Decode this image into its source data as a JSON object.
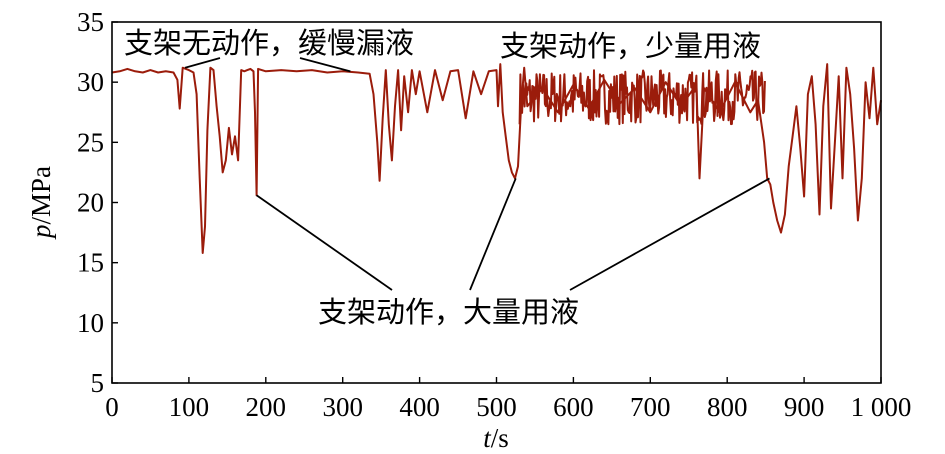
{
  "chart_data": {
    "type": "line",
    "xlabel": {
      "var": "t",
      "unit": "/s"
    },
    "ylabel": {
      "var": "p",
      "unit": "/MPa"
    },
    "xlim": [
      0,
      1000
    ],
    "ylim": [
      5,
      35
    ],
    "xticks": [
      0,
      100,
      200,
      300,
      400,
      500,
      600,
      700,
      800,
      900,
      1000
    ],
    "xtick_labels": [
      "0",
      "100",
      "200",
      "300",
      "400",
      "500",
      "600",
      "700",
      "800",
      "900",
      "1 000"
    ],
    "yticks": [
      5,
      10,
      15,
      20,
      25,
      30,
      35
    ],
    "ytick_labels": [
      "5",
      "10",
      "15",
      "20",
      "25",
      "30",
      "35"
    ],
    "grid": false,
    "series": [
      {
        "color": "#9b1c0b",
        "x": [
          0,
          10,
          20,
          30,
          40,
          50,
          60,
          70,
          80,
          85,
          88,
          92,
          100,
          106,
          110,
          114,
          118,
          121,
          124,
          128,
          132,
          136,
          140,
          144,
          148,
          152,
          156,
          160,
          164,
          168,
          172,
          176,
          180,
          184,
          186,
          188,
          190,
          200,
          220,
          240,
          260,
          280,
          300,
          320,
          335,
          340,
          345,
          348,
          352,
          356,
          360,
          364,
          368,
          372,
          376,
          380,
          385,
          390,
          395,
          400,
          410,
          420,
          430,
          440,
          450,
          460,
          470,
          480,
          490,
          500,
          502,
          505,
          508,
          512,
          516,
          520,
          524,
          528,
          532,
          536,
          540,
          560,
          580,
          600,
          620,
          640,
          660,
          680,
          700,
          720,
          740,
          760,
          764,
          770,
          790,
          810,
          830,
          840,
          848,
          852,
          856,
          860,
          865,
          870,
          875,
          880,
          885,
          890,
          895,
          900,
          905,
          910,
          915,
          920,
          925,
          930,
          935,
          940,
          945,
          950,
          955,
          960,
          965,
          970,
          975,
          980,
          985,
          990,
          995,
          1000
        ],
        "y": [
          30.8,
          30.9,
          31.1,
          30.9,
          30.8,
          31.0,
          30.8,
          30.9,
          30.8,
          30.2,
          27.8,
          31.2,
          31.0,
          30.8,
          29.0,
          22.0,
          15.8,
          18.0,
          26.0,
          31.2,
          31.0,
          28.0,
          25.5,
          22.5,
          23.5,
          26.2,
          24.0,
          25.5,
          23.5,
          31.0,
          30.9,
          31.0,
          31.1,
          30.9,
          27.5,
          20.6,
          31.1,
          30.9,
          31.0,
          30.9,
          31.0,
          30.8,
          30.9,
          30.8,
          30.7,
          29.0,
          25.0,
          21.8,
          27.0,
          31.0,
          26.5,
          23.5,
          28.0,
          31.0,
          26.0,
          30.5,
          27.5,
          31.0,
          29.0,
          30.9,
          27.5,
          31.0,
          28.5,
          30.9,
          31.0,
          27.0,
          30.9,
          29.0,
          30.9,
          31.0,
          28.0,
          31.5,
          27.5,
          25.5,
          23.5,
          22.5,
          22.0,
          23.0,
          28.0,
          31.2,
          28.0,
          29.5,
          27.5,
          29.8,
          27.8,
          30.2,
          28.2,
          29.5,
          27.5,
          30.0,
          28.0,
          29.8,
          22.0,
          29.5,
          27.5,
          30.0,
          27.5,
          28.5,
          25.0,
          22.0,
          21.5,
          20.0,
          18.5,
          17.5,
          19.0,
          23.0,
          25.5,
          28.0,
          24.5,
          20.5,
          29.0,
          30.5,
          26.5,
          19.0,
          28.0,
          31.5,
          19.5,
          25.0,
          30.5,
          22.0,
          31.2,
          29.0,
          24.5,
          18.5,
          22.0,
          30.0,
          27.0,
          31.2,
          26.5,
          28.5
        ]
      }
    ],
    "annotations": [
      {
        "text": "支架无动作，缓慢漏液",
        "targets": [
          [
            95,
            31.2
          ],
          [
            310,
            30.9
          ]
        ]
      },
      {
        "text": "支架动作，少量用液",
        "targets": []
      },
      {
        "text": "支架动作，大量用液",
        "targets": [
          [
            188,
            20.6
          ],
          [
            525,
            22.0
          ],
          [
            855,
            22.0
          ]
        ]
      }
    ]
  }
}
